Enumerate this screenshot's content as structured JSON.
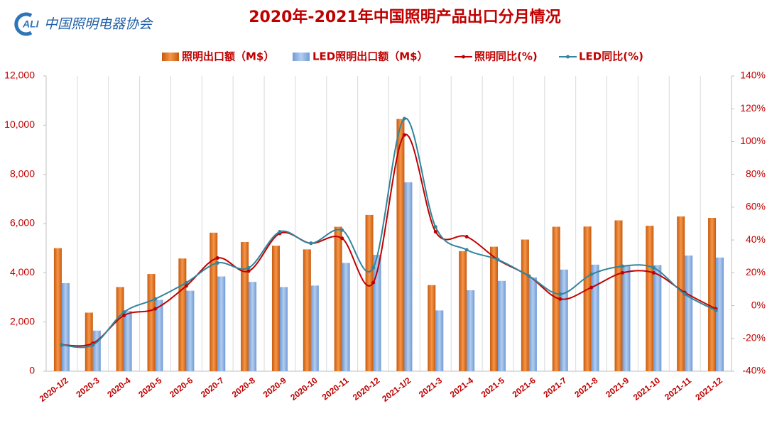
{
  "logo": {
    "mark": "ALI",
    "name": "中国照明电器协会"
  },
  "chart_data": {
    "type": "bar-line",
    "title": "2020年-2021年中国照明产品出口分月情况",
    "categories": [
      "2020-1/2",
      "2020-3",
      "2020-4",
      "2020-5",
      "2020-6",
      "2020-7",
      "2020-8",
      "2020-9",
      "2020-10",
      "2020-11",
      "2020-12",
      "2021-1/2",
      "2021-3",
      "2021-4",
      "2021-5",
      "2021-6",
      "2021-7",
      "2021-8",
      "2021-9",
      "2021-10",
      "2021-11",
      "2021-12"
    ],
    "series": [
      {
        "name": "照明出口额（M$）",
        "kind": "bar",
        "color": "#e36c0a",
        "values": [
          5000,
          2380,
          3420,
          3950,
          4580,
          5630,
          5250,
          5100,
          4950,
          5870,
          6350,
          10250,
          3500,
          4880,
          5060,
          5350,
          5870,
          5880,
          6130,
          5910,
          6290,
          6230
        ]
      },
      {
        "name": "LED照明出口额（M$）",
        "kind": "bar",
        "color": "#8eb4e3",
        "values": [
          3580,
          1650,
          2450,
          2900,
          3270,
          3850,
          3630,
          3420,
          3480,
          4400,
          4730,
          7680,
          2470,
          3290,
          3670,
          3810,
          4130,
          4330,
          4280,
          4310,
          4700,
          4620
        ]
      },
      {
        "name": "照明同比(%)",
        "kind": "line",
        "axis": "y2",
        "color": "#c00000",
        "values": [
          -24,
          -23,
          -6,
          -2,
          12,
          29,
          21,
          44,
          38,
          41,
          14,
          104,
          45,
          42,
          28,
          18,
          4,
          11,
          20,
          20,
          8,
          -2
        ]
      },
      {
        "name": "LED同比(%)",
        "kind": "line",
        "axis": "y2",
        "color": "#31859c",
        "values": [
          -24,
          -24,
          -4,
          4,
          14,
          26,
          23,
          45,
          38,
          46,
          23,
          114,
          48,
          34,
          28,
          18,
          7,
          19,
          24,
          23,
          7,
          -3
        ]
      }
    ],
    "ylim": [
      0,
      12000
    ],
    "yticks": [
      {
        "value": 0,
        "label": "0"
      },
      {
        "value": 2000,
        "label": "2,000"
      },
      {
        "value": 4000,
        "label": "4,000"
      },
      {
        "value": 6000,
        "label": "6,000"
      },
      {
        "value": 8000,
        "label": "8,000"
      },
      {
        "value": 10000,
        "label": "10,000"
      },
      {
        "value": 12000,
        "label": "12,000"
      }
    ],
    "y2lim": [
      -40,
      140
    ],
    "y2ticks": [
      {
        "value": -40,
        "label": "-40%"
      },
      {
        "value": -20,
        "label": "-20%"
      },
      {
        "value": 0,
        "label": "0%"
      },
      {
        "value": 20,
        "label": "20%"
      },
      {
        "value": 40,
        "label": "40%"
      },
      {
        "value": 60,
        "label": "60%"
      },
      {
        "value": 80,
        "label": "80%"
      },
      {
        "value": 100,
        "label": "100%"
      },
      {
        "value": 120,
        "label": "120%"
      },
      {
        "value": 140,
        "label": "140%"
      }
    ],
    "grid": true
  }
}
